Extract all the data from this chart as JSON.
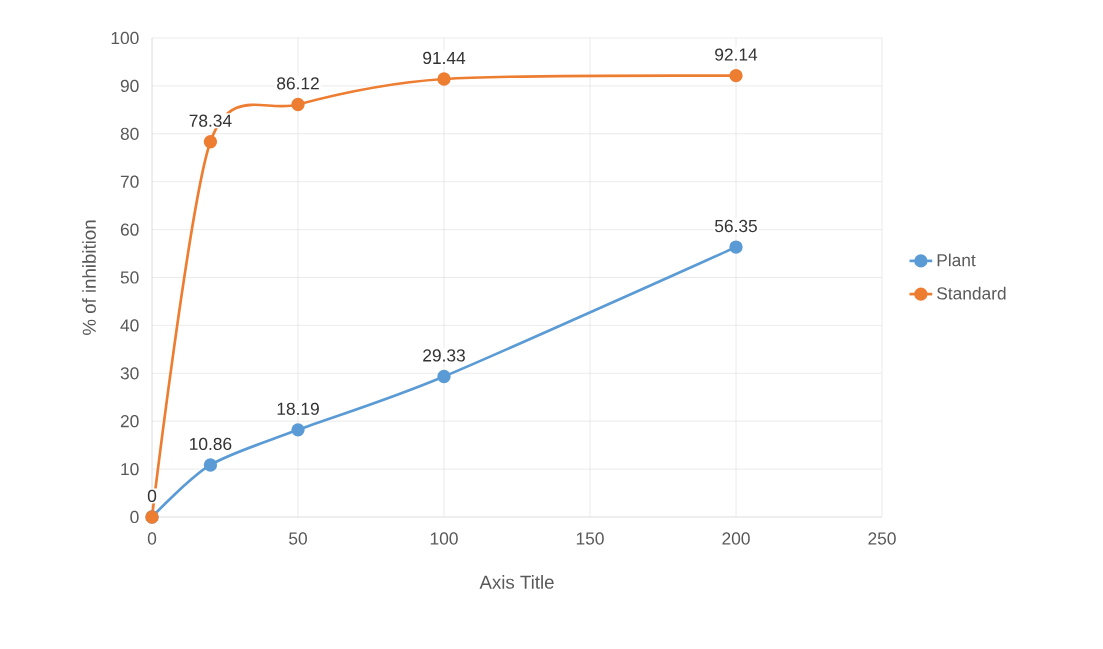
{
  "chart_data": {
    "type": "line",
    "xlabel": "Axis Title",
    "ylabel": "% of inhibition",
    "x": [
      0,
      20,
      50,
      100,
      200
    ],
    "series": [
      {
        "name": "Plant",
        "color": "#5b9bd5",
        "values": [
          0,
          10.86,
          18.19,
          29.33,
          56.35
        ],
        "value_labels": [
          "0",
          "10.86",
          "18.19",
          "29.33",
          "56.35"
        ]
      },
      {
        "name": "Standard",
        "color": "#ed7d31",
        "values": [
          0,
          78.34,
          86.12,
          91.44,
          92.14
        ],
        "value_labels": [
          null,
          "78.34",
          "86.12",
          "91.44",
          "92.14"
        ]
      }
    ],
    "xlim": [
      0,
      250
    ],
    "xticks": [
      0,
      50,
      100,
      150,
      200,
      250
    ],
    "ylim": [
      0,
      100
    ],
    "yticks": [
      0,
      10,
      20,
      30,
      40,
      50,
      60,
      70,
      80,
      90,
      100
    ],
    "grid": true,
    "legend": "right",
    "marker": "circle"
  }
}
